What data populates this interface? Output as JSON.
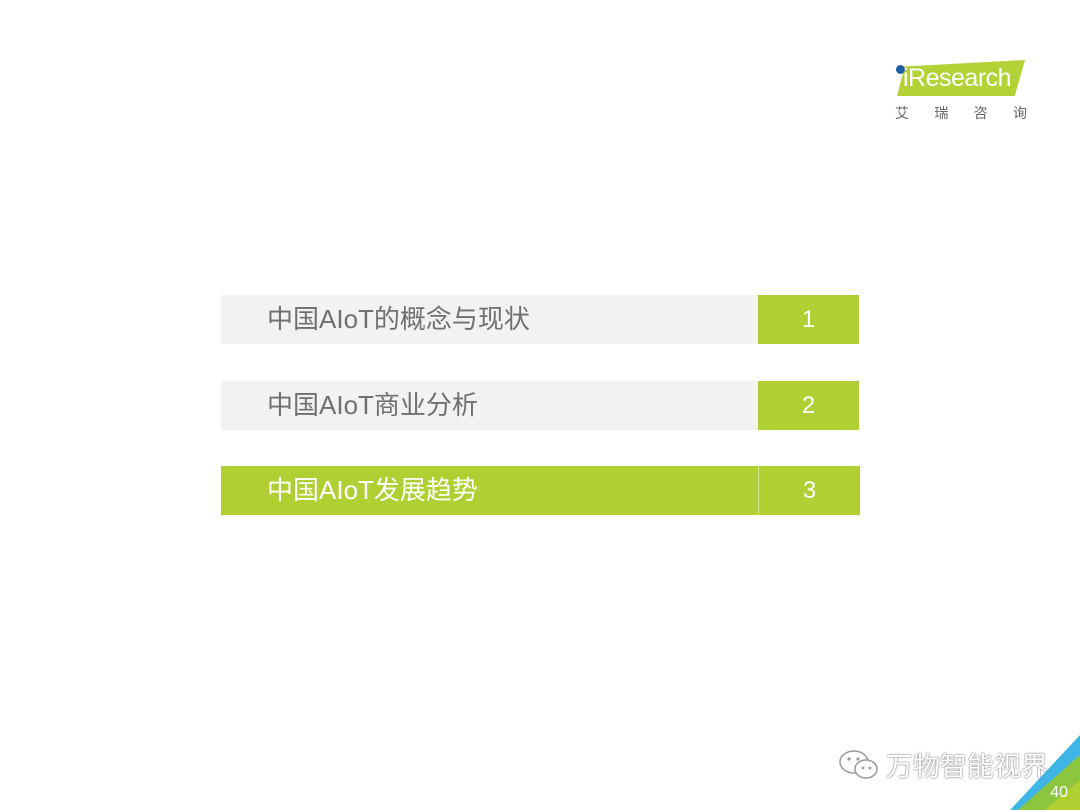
{
  "logo": {
    "brand": "iResearch",
    "chinese": [
      "艾",
      "瑞",
      "咨",
      "询"
    ]
  },
  "agenda": [
    {
      "label": "中国AIoT的概念与现状",
      "number": "1",
      "active": false
    },
    {
      "label": "中国AIoT商业分析",
      "number": "2",
      "active": false
    },
    {
      "label": "中国AIoT发展趋势",
      "number": "3",
      "active": true
    }
  ],
  "watermark": {
    "text": "万物智能视界",
    "icon": "wechat-icon"
  },
  "page_number": "40",
  "colors": {
    "accent": "#b0cf32",
    "inactive": "#f2f2f2",
    "text": "#707070",
    "corner_blue": "#3fb5e6"
  }
}
